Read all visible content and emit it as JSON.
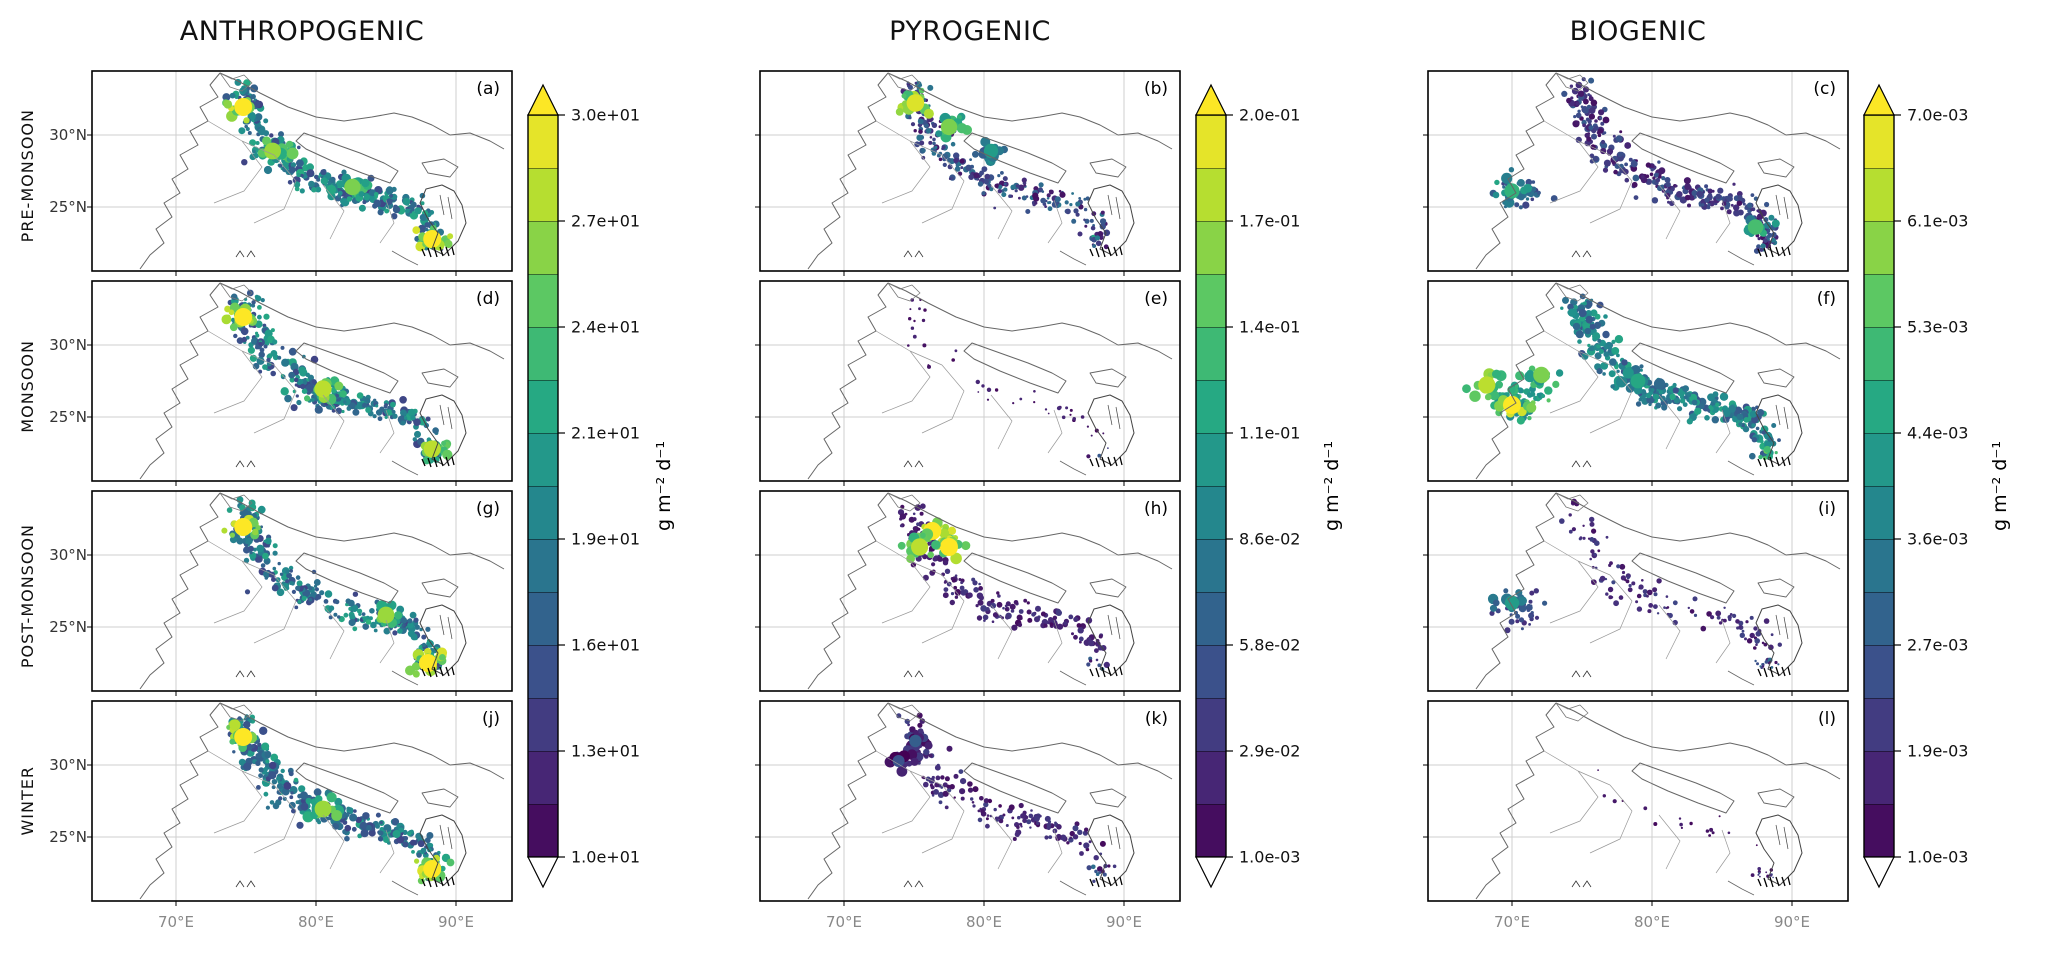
{
  "chart_data": {
    "type": "heatmap",
    "title": "",
    "description": "Seasonal emission-flux maps over the Indo-Gangetic Plain for three source categories, viridis colormap, 12 map panels (a)-(l) arranged as 4 seasons x 3 sources.",
    "columns": [
      "ANTHROPOGENIC",
      "PYROGENIC",
      "BIOGENIC"
    ],
    "rows": [
      "PRE-MONSOON",
      "MONSOON",
      "POST-MONSOON",
      "WINTER"
    ],
    "map_extent": {
      "lat_ticks": [
        "30°N",
        "25°N"
      ],
      "lon_ticks": [
        "70°E",
        "80°E",
        "90°E"
      ]
    },
    "colorbars": [
      {
        "column": "ANTHROPOGENIC",
        "unit": "g m⁻² d⁻¹",
        "colormap": "viridis",
        "range": [
          10,
          30
        ],
        "tick_labels": [
          "3.0e+01",
          "2.7e+01",
          "2.4e+01",
          "2.1e+01",
          "1.9e+01",
          "1.6e+01",
          "1.3e+01",
          "1.0e+01"
        ],
        "over_arrow": true,
        "under_arrow": true
      },
      {
        "column": "PYROGENIC",
        "unit": "g m⁻² d⁻¹",
        "colormap": "viridis",
        "range": [
          0.001,
          0.2
        ],
        "tick_labels": [
          "2.0e-01",
          "1.7e-01",
          "1.4e-01",
          "1.1e-01",
          "8.6e-02",
          "5.8e-02",
          "2.9e-02",
          "1.0e-03"
        ],
        "over_arrow": true,
        "under_arrow": true
      },
      {
        "column": "BIOGENIC",
        "unit": "g m⁻² d⁻¹",
        "colormap": "viridis",
        "range": [
          0.001,
          0.007
        ],
        "tick_labels": [
          "7.0e-03",
          "6.1e-03",
          "5.3e-03",
          "4.4e-03",
          "3.6e-03",
          "2.7e-03",
          "1.9e-03",
          "1.0e-03"
        ],
        "over_arrow": true,
        "under_arrow": true
      }
    ],
    "colors": {
      "viridis_min": "#440154",
      "viridis_max": "#fde725",
      "background": "#ffffff",
      "outline": "#666666",
      "grid": "#cfcfcf"
    },
    "panels": [
      {
        "letter": "(a)",
        "row": "PRE-MONSOON",
        "column": "ANTHROPOGENIC",
        "pattern": {
          "coverage": 0.9,
          "base_level": [
            0.2,
            0.62
          ],
          "dot": 1.0,
          "west": 0,
          "delta": 1.0,
          "hotspots": [
            [
              0.36,
              0.18,
              1.0
            ],
            [
              0.43,
              0.4,
              0.85
            ],
            [
              0.62,
              0.58,
              0.8
            ],
            [
              0.81,
              0.84,
              1.0
            ]
          ]
        }
      },
      {
        "letter": "(b)",
        "row": "PRE-MONSOON",
        "column": "PYROGENIC",
        "pattern": {
          "coverage": 0.7,
          "base_level": [
            0.04,
            0.4
          ],
          "dot": 0.8,
          "west": 0,
          "delta": 0.3,
          "hotspots": [
            [
              0.37,
              0.16,
              0.95
            ],
            [
              0.45,
              0.28,
              0.8
            ],
            [
              0.55,
              0.4,
              0.55
            ]
          ]
        }
      },
      {
        "letter": "(c)",
        "row": "PRE-MONSOON",
        "column": "BIOGENIC",
        "pattern": {
          "coverage": 0.85,
          "base_level": [
            0.04,
            0.3
          ],
          "dot": 0.85,
          "west": 0.5,
          "delta": 0.6,
          "hotspots": [
            [
              0.2,
              0.6,
              0.65
            ],
            [
              0.78,
              0.78,
              0.7
            ]
          ]
        }
      },
      {
        "letter": "(d)",
        "row": "MONSOON",
        "column": "ANTHROPOGENIC",
        "pattern": {
          "coverage": 0.85,
          "base_level": [
            0.2,
            0.6
          ],
          "dot": 1.0,
          "west": 0,
          "delta": 0.8,
          "hotspots": [
            [
              0.36,
              0.18,
              1.0
            ],
            [
              0.55,
              0.54,
              0.9
            ],
            [
              0.81,
              0.84,
              0.9
            ]
          ]
        }
      },
      {
        "letter": "(e)",
        "row": "MONSOON",
        "column": "PYROGENIC",
        "pattern": {
          "coverage": 0.12,
          "base_level": [
            0.02,
            0.12
          ],
          "dot": 0.55,
          "west": 0,
          "delta": 0.1,
          "hotspots": []
        }
      },
      {
        "letter": "(f)",
        "row": "MONSOON",
        "column": "BIOGENIC",
        "pattern": {
          "coverage": 0.95,
          "base_level": [
            0.25,
            0.6
          ],
          "dot": 1.0,
          "west": 1.0,
          "delta": 0.5,
          "hotspots": [
            [
              0.2,
              0.62,
              1.0
            ],
            [
              0.14,
              0.52,
              0.9
            ],
            [
              0.27,
              0.47,
              0.8
            ],
            [
              0.5,
              0.5,
              0.6
            ]
          ]
        }
      },
      {
        "letter": "(g)",
        "row": "POST-MONSOON",
        "column": "ANTHROPOGENIC",
        "pattern": {
          "coverage": 0.8,
          "base_level": [
            0.2,
            0.6
          ],
          "dot": 0.95,
          "west": 0,
          "delta": 0.9,
          "hotspots": [
            [
              0.36,
              0.18,
              1.0
            ],
            [
              0.7,
              0.62,
              0.85
            ],
            [
              0.8,
              0.86,
              1.0
            ]
          ]
        }
      },
      {
        "letter": "(h)",
        "row": "POST-MONSOON",
        "column": "PYROGENIC",
        "pattern": {
          "coverage": 0.55,
          "base_level": [
            0.03,
            0.18
          ],
          "dot": 0.8,
          "west": 0,
          "delta": 0.2,
          "hotspots": [
            [
              0.41,
              0.2,
              1.0
            ],
            [
              0.45,
              0.28,
              1.0
            ],
            [
              0.38,
              0.28,
              0.9
            ]
          ]
        }
      },
      {
        "letter": "(i)",
        "row": "POST-MONSOON",
        "column": "BIOGENIC",
        "pattern": {
          "coverage": 0.35,
          "base_level": [
            0.04,
            0.22
          ],
          "dot": 0.7,
          "west": 0.6,
          "delta": 0.5,
          "hotspots": [
            [
              0.2,
              0.56,
              0.55
            ]
          ]
        }
      },
      {
        "letter": "(j)",
        "row": "WINTER",
        "column": "ANTHROPOGENIC",
        "pattern": {
          "coverage": 0.85,
          "base_level": [
            0.2,
            0.6
          ],
          "dot": 1.0,
          "west": 0,
          "delta": 1.0,
          "hotspots": [
            [
              0.36,
              0.18,
              1.0
            ],
            [
              0.55,
              0.54,
              0.85
            ],
            [
              0.81,
              0.84,
              1.0
            ]
          ]
        }
      },
      {
        "letter": "(k)",
        "row": "WINTER",
        "column": "PYROGENIC",
        "pattern": {
          "coverage": 0.5,
          "base_level": [
            0.03,
            0.2
          ],
          "dot": 0.75,
          "west": 0,
          "delta": 0.3,
          "hotspots": [
            [
              0.37,
              0.2,
              0.3
            ],
            [
              0.33,
              0.3,
              0.25
            ]
          ]
        }
      },
      {
        "letter": "(l)",
        "row": "WINTER",
        "column": "BIOGENIC",
        "pattern": {
          "coverage": 0.05,
          "base_level": [
            0.02,
            0.1
          ],
          "dot": 0.5,
          "west": 0,
          "delta": 0.4,
          "hotspots": []
        }
      }
    ]
  }
}
